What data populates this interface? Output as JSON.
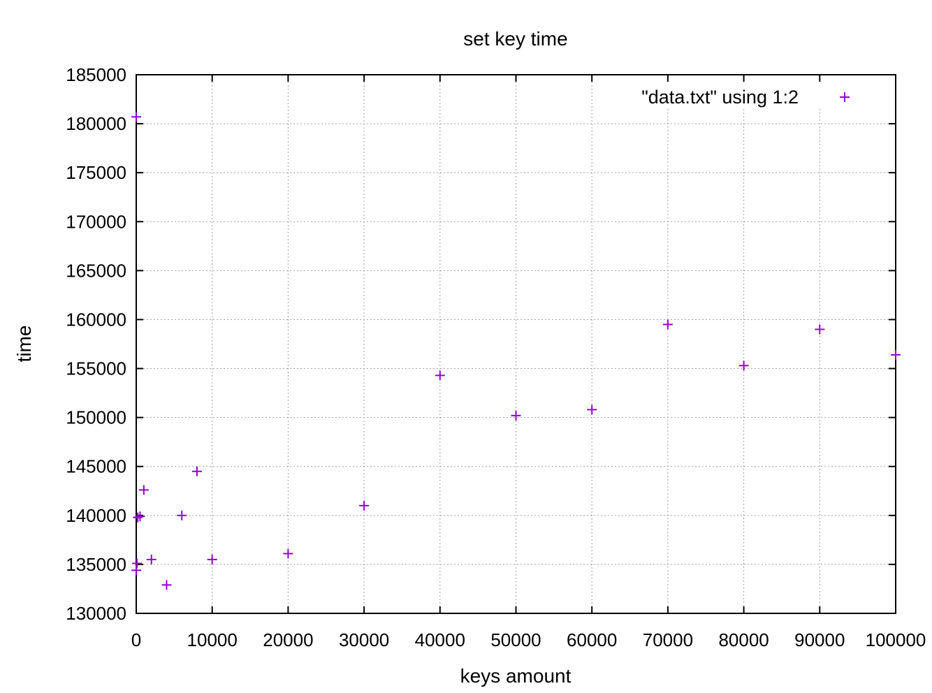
{
  "chart_data": {
    "type": "scatter",
    "title": "set key time",
    "xlabel": "keys amount",
    "ylabel": "time",
    "xlim": [
      0,
      100000
    ],
    "ylim": [
      130000,
      185000
    ],
    "x_ticks": [
      0,
      10000,
      20000,
      30000,
      40000,
      50000,
      60000,
      70000,
      80000,
      90000,
      100000
    ],
    "y_ticks": [
      130000,
      135000,
      140000,
      145000,
      150000,
      155000,
      160000,
      165000,
      170000,
      175000,
      180000,
      185000
    ],
    "x_tick_labels": [
      "0",
      "10000",
      "20000",
      "30000",
      "40000",
      "50000",
      "60000",
      "70000",
      "80000",
      "90000",
      "100000"
    ],
    "y_tick_labels": [
      "130000",
      "135000",
      "140000",
      "145000",
      "150000",
      "155000",
      "160000",
      "165000",
      "170000",
      "175000",
      "180000",
      "185000"
    ],
    "grid": true,
    "legend_position": "top-right",
    "marker": "plus",
    "color": "#9400d3",
    "series": [
      {
        "name": "\"data.txt\" using 1:2",
        "points": [
          {
            "x": 1,
            "y": 180700
          },
          {
            "x": 10,
            "y": 134400
          },
          {
            "x": 100,
            "y": 135100
          },
          {
            "x": 200,
            "y": 139800
          },
          {
            "x": 500,
            "y": 139900
          },
          {
            "x": 1000,
            "y": 142600
          },
          {
            "x": 2000,
            "y": 135500
          },
          {
            "x": 4000,
            "y": 132900
          },
          {
            "x": 6000,
            "y": 140000
          },
          {
            "x": 8000,
            "y": 144500
          },
          {
            "x": 10000,
            "y": 135500
          },
          {
            "x": 20000,
            "y": 136100
          },
          {
            "x": 30000,
            "y": 141000
          },
          {
            "x": 40000,
            "y": 154300
          },
          {
            "x": 50000,
            "y": 150200
          },
          {
            "x": 60000,
            "y": 150800
          },
          {
            "x": 70000,
            "y": 159500
          },
          {
            "x": 80000,
            "y": 155300
          },
          {
            "x": 90000,
            "y": 159000
          },
          {
            "x": 100000,
            "y": 156400
          }
        ]
      }
    ]
  }
}
